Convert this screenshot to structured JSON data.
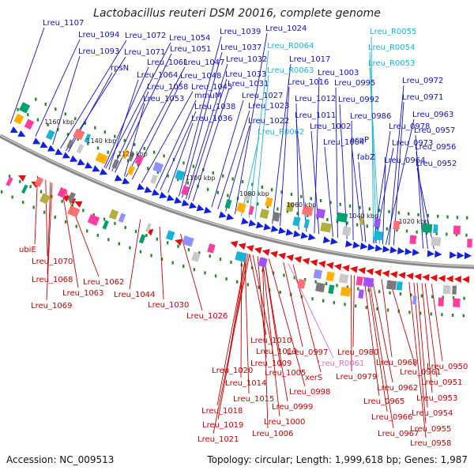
{
  "title": "Lactobacillus reuteri DSM 20016, complete genome",
  "accession": "Accession: NC_009513",
  "summary": "Topology: circular; Length: 1,999,618 bp; Genes: 1,987",
  "colors": {
    "top_label": "#1010cc",
    "rna_label": "#18b4d8",
    "bottom_label": "#cc0000",
    "pink_label": "#e070c8",
    "forward_arrow": "#1020e0",
    "reverse_arrow": "#e01010",
    "tick": "#2a8a2a",
    "backbone": "#8a8a8a"
  },
  "kbp_labels": [
    "1160 kbp",
    "1140 kbp",
    "1120 kbp",
    "1100 kbp",
    "1080 kbp",
    "1060 kbp",
    "1040 kbp",
    "1020 kbp"
  ],
  "top_labels": [
    {
      "text": "Lreu_1107",
      "kind": "gene"
    },
    {
      "text": "Lreu_1094",
      "kind": "gene"
    },
    {
      "text": "Lreu_1093",
      "kind": "gene"
    },
    {
      "text": "Lreu_1072",
      "kind": "gene"
    },
    {
      "text": "Lreu_1071",
      "kind": "gene"
    },
    {
      "text": "rpsN",
      "kind": "gene"
    },
    {
      "text": "Lreu_1054",
      "kind": "gene"
    },
    {
      "text": "Lreu_1051",
      "kind": "gene"
    },
    {
      "text": "Lreu_1061",
      "kind": "gene"
    },
    {
      "text": "Lreu_1047",
      "kind": "gene"
    },
    {
      "text": "Lreu_1064",
      "kind": "gene"
    },
    {
      "text": "Lreu_1048",
      "kind": "gene"
    },
    {
      "text": "Lreu_1058",
      "kind": "gene"
    },
    {
      "text": "Lreu_1045",
      "kind": "gene"
    },
    {
      "text": "Lreu_1053",
      "kind": "gene"
    },
    {
      "text": "mmuM",
      "kind": "gene"
    },
    {
      "text": "Lreu_1038",
      "kind": "gene"
    },
    {
      "text": "Lreu_1036",
      "kind": "gene"
    },
    {
      "text": "Lreu_1039",
      "kind": "gene"
    },
    {
      "text": "Lreu_1037",
      "kind": "gene"
    },
    {
      "text": "Lreu_1032",
      "kind": "gene"
    },
    {
      "text": "Lreu_1033",
      "kind": "gene"
    },
    {
      "text": "Lreu_1031",
      "kind": "gene"
    },
    {
      "text": "Lreu_1027",
      "kind": "gene"
    },
    {
      "text": "Lreu_1023",
      "kind": "gene"
    },
    {
      "text": "Lreu_1022",
      "kind": "gene"
    },
    {
      "text": "Lreu_R0062",
      "kind": "rna"
    },
    {
      "text": "Lreu_1024",
      "kind": "gene"
    },
    {
      "text": "Lreu_R0064",
      "kind": "rna"
    },
    {
      "text": "Lreu_R0063",
      "kind": "rna"
    },
    {
      "text": "Lreu_1017",
      "kind": "gene"
    },
    {
      "text": "Lreu_1016",
      "kind": "gene"
    },
    {
      "text": "Lreu_1012",
      "kind": "gene"
    },
    {
      "text": "Lreu_1011",
      "kind": "gene"
    },
    {
      "text": "Lreu_1003",
      "kind": "gene"
    },
    {
      "text": "Lreu_1002",
      "kind": "gene"
    },
    {
      "text": "Lreu_1004",
      "kind": "gene"
    },
    {
      "text": "Lreu_0995",
      "kind": "gene"
    },
    {
      "text": "Lreu_0992",
      "kind": "gene"
    },
    {
      "text": "Lreu_0986",
      "kind": "gene"
    },
    {
      "text": "acpP",
      "kind": "gene"
    },
    {
      "text": "fabZ",
      "kind": "gene"
    },
    {
      "text": "Lreu_R0055",
      "kind": "rna"
    },
    {
      "text": "Lreu_R0054",
      "kind": "rna"
    },
    {
      "text": "Lreu_R0053",
      "kind": "rna"
    },
    {
      "text": "Lreu_0972",
      "kind": "gene"
    },
    {
      "text": "Lreu_0971",
      "kind": "gene"
    },
    {
      "text": "Lreu_0978",
      "kind": "gene"
    },
    {
      "text": "Lreu_0973",
      "kind": "gene"
    },
    {
      "text": "Lreu_0963",
      "kind": "gene"
    },
    {
      "text": "Lreu_0964",
      "kind": "gene"
    },
    {
      "text": "Lreu_0957",
      "kind": "gene"
    },
    {
      "text": "Lreu_0956",
      "kind": "gene"
    },
    {
      "text": "Lreu_0952",
      "kind": "gene"
    }
  ],
  "bottom_labels": [
    {
      "text": "ubiE",
      "kind": "gene"
    },
    {
      "text": "Lreu_1070",
      "kind": "gene"
    },
    {
      "text": "Lreu_1068",
      "kind": "gene"
    },
    {
      "text": "Lreu_1069",
      "kind": "gene"
    },
    {
      "text": "Lreu_1063",
      "kind": "gene"
    },
    {
      "text": "Lreu_1062",
      "kind": "gene"
    },
    {
      "text": "Lreu_1044",
      "kind": "gene"
    },
    {
      "text": "Lreu_1030",
      "kind": "gene"
    },
    {
      "text": "Lreu_1026",
      "kind": "gene"
    },
    {
      "text": "Lreu_1010",
      "kind": "gene"
    },
    {
      "text": "Lreu_1013",
      "kind": "gene"
    },
    {
      "text": "Lreu_1009",
      "kind": "gene"
    },
    {
      "text": "Lreu_1020",
      "kind": "gene"
    },
    {
      "text": "Lreu_1005",
      "kind": "gene"
    },
    {
      "text": "Lreu_1014",
      "kind": "gene"
    },
    {
      "text": "Lreu_1015",
      "kind": "gene"
    },
    {
      "text": "Lreu_1018",
      "kind": "gene"
    },
    {
      "text": "Lreu_1019",
      "kind": "gene"
    },
    {
      "text": "Lreu_1021",
      "kind": "gene"
    },
    {
      "text": "Lreu_1006",
      "kind": "gene"
    },
    {
      "text": "Lreu_0997",
      "kind": "gene"
    },
    {
      "text": "Lreu_R0061",
      "kind": "pink"
    },
    {
      "text": "xerS",
      "kind": "gene"
    },
    {
      "text": "Lreu_0998",
      "kind": "gene"
    },
    {
      "text": "Lreu_0999",
      "kind": "gene"
    },
    {
      "text": "Lreu_1000",
      "kind": "gene"
    },
    {
      "text": "Lreu_0980",
      "kind": "gene"
    },
    {
      "text": "Lreu_0979",
      "kind": "gene"
    },
    {
      "text": "Lreu_0968",
      "kind": "gene"
    },
    {
      "text": "Lreu_0961",
      "kind": "gene"
    },
    {
      "text": "Lreu_0962",
      "kind": "gene"
    },
    {
      "text": "Lreu_0965",
      "kind": "gene"
    },
    {
      "text": "Lreu_0966",
      "kind": "gene"
    },
    {
      "text": "Lreu_0967",
      "kind": "gene"
    },
    {
      "text": "Lreu_0958",
      "kind": "gene"
    },
    {
      "text": "Lreu_0955",
      "kind": "gene"
    },
    {
      "text": "Lreu_0954",
      "kind": "gene"
    },
    {
      "text": "Lreu_0953",
      "kind": "gene"
    },
    {
      "text": "Lreu_0951",
      "kind": "gene"
    },
    {
      "text": "Lreu_0950",
      "kind": "gene"
    }
  ]
}
